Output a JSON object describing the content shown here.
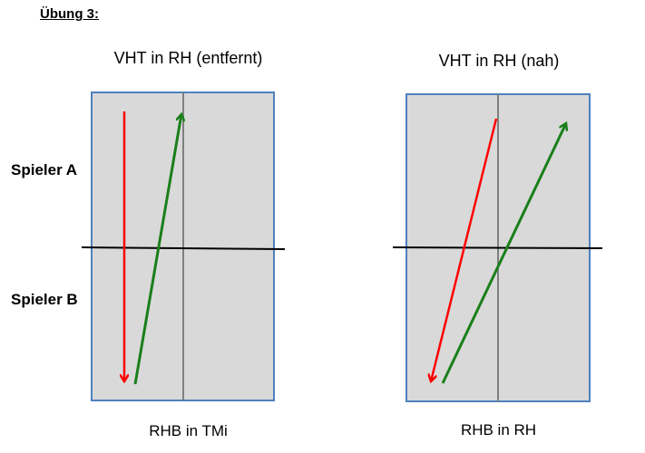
{
  "heading": "Übung 3:",
  "players": {
    "a": "Spieler A",
    "b": "Spieler B"
  },
  "panels": [
    {
      "title": "VHT in RH (entfernt)",
      "caption": "RHB in TMi"
    },
    {
      "title": "VHT in RH (nah)",
      "caption": "RHB in RH"
    }
  ],
  "colors": {
    "court_fill": "#d9d9d9",
    "court_border": "#4f81bd",
    "center_line": "#7f7f7f",
    "net": "#000000",
    "shot_red": "#ff0000",
    "shot_green": "#1a7f1a"
  }
}
